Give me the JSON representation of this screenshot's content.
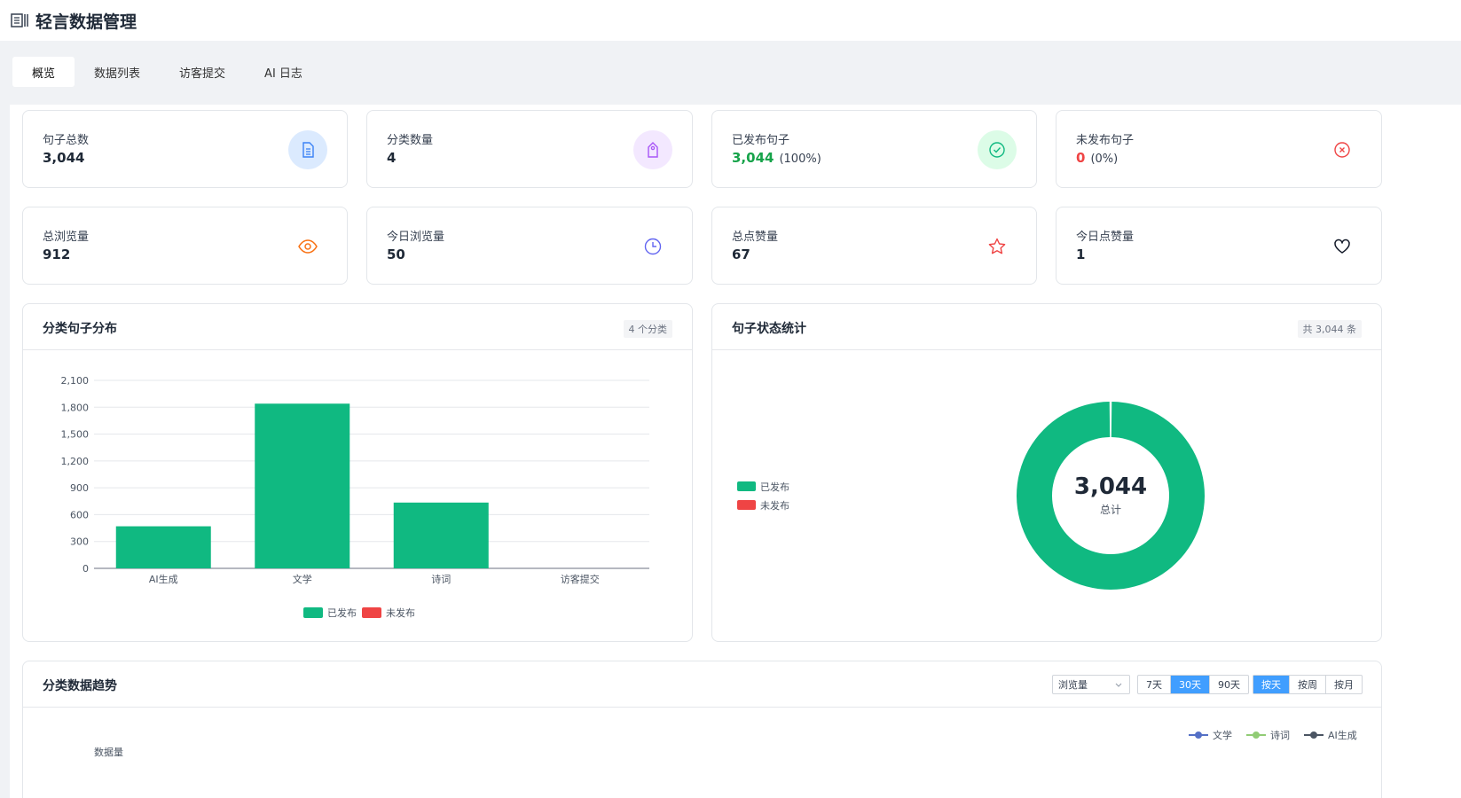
{
  "app": {
    "title": "轻言数据管理"
  },
  "tabs": [
    {
      "label": "概览"
    },
    {
      "label": "数据列表"
    },
    {
      "label": "访客提交"
    },
    {
      "label": "AI 日志"
    }
  ],
  "stats": [
    {
      "label": "句子总数",
      "value": "3,044",
      "sub": "",
      "icon": "document-icon",
      "color": "#1f2937"
    },
    {
      "label": "分类数量",
      "value": "4",
      "sub": "",
      "icon": "tag-icon",
      "color": "#1f2937"
    },
    {
      "label": "已发布句子",
      "value": "3,044",
      "sub": "(100%)",
      "icon": "check-circle-icon",
      "color": "#16a34a"
    },
    {
      "label": "未发布句子",
      "value": "0",
      "sub": "(0%)",
      "icon": "x-circle-icon",
      "color": "#ef4444"
    },
    {
      "label": "总浏览量",
      "value": "912",
      "sub": "",
      "icon": "eye-icon",
      "color": "#1f2937"
    },
    {
      "label": "今日浏览量",
      "value": "50",
      "sub": "",
      "icon": "clock-icon",
      "color": "#1f2937"
    },
    {
      "label": "总点赞量",
      "value": "67",
      "sub": "",
      "icon": "star-icon",
      "color": "#1f2937"
    },
    {
      "label": "今日点赞量",
      "value": "1",
      "sub": "",
      "icon": "heart-icon",
      "color": "#1f2937"
    }
  ],
  "bar_panel": {
    "title": "分类句子分布",
    "tag": "4 个分类"
  },
  "donut_panel": {
    "title": "句子状态统计",
    "tag": "共 3,044 条",
    "center_value": "3,044",
    "center_label": "总计"
  },
  "trend_panel": {
    "title": "分类数据趋势",
    "metric_select": "浏览量",
    "ranges": [
      "7天",
      "30天",
      "90天"
    ],
    "range_selected": "30天",
    "granularity": [
      "按天",
      "按周",
      "按月"
    ],
    "granularity_selected": "按天",
    "ylabel": "数据量",
    "legend": [
      {
        "name": "文学",
        "color": "#5470c6"
      },
      {
        "name": "诗词",
        "color": "#91cc75"
      },
      {
        "name": "AI生成",
        "color": "#4b5563"
      }
    ]
  },
  "colors": {
    "published": "#10b981",
    "unpublished": "#ef4444",
    "accent": "#409eff"
  },
  "chart_data": [
    {
      "type": "bar",
      "categories": [
        "AI生成",
        "文学",
        "诗词",
        "访客提交"
      ],
      "series": [
        {
          "name": "已发布",
          "values": [
            470,
            1840,
            735,
            0
          ]
        },
        {
          "name": "未发布",
          "values": [
            0,
            0,
            0,
            0
          ]
        }
      ],
      "ylim": [
        0,
        2100
      ],
      "yticks": [
        "0",
        "300",
        "600",
        "900",
        "1,200",
        "1,500",
        "1,800",
        "2,100"
      ],
      "legend": "bottom-center",
      "grid": true
    },
    {
      "type": "pie",
      "labels": [
        "已发布",
        "未发布"
      ],
      "values": [
        3044,
        0
      ],
      "legend": "left"
    }
  ]
}
